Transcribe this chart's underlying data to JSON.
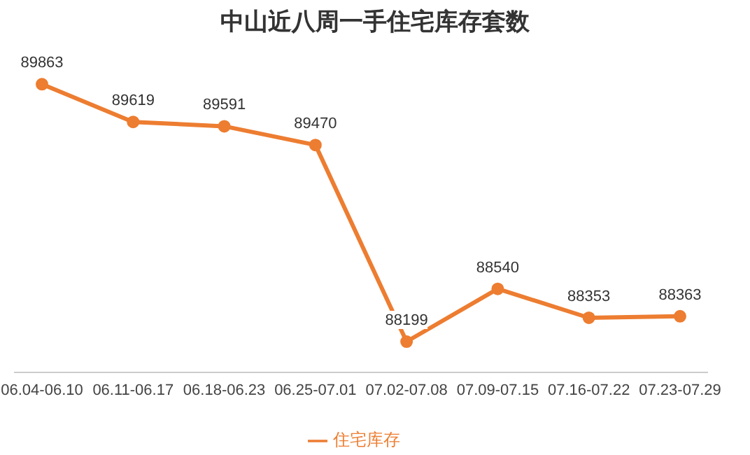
{
  "chart_data": {
    "type": "line",
    "title": "中山近八周一手住宅库存套数",
    "categories": [
      "06.04-06.10",
      "06.11-06.17",
      "06.18-06.23",
      "06.25-07.01",
      "07.02-07.08",
      "07.09-07.15",
      "07.16-07.22",
      "07.23-07.29"
    ],
    "series": [
      {
        "name": "住宅库存",
        "color": "#ed7d31",
        "values": [
          89863,
          89619,
          89591,
          89470,
          88199,
          88540,
          88353,
          88363
        ]
      }
    ],
    "tick_labels": "x",
    "data_labels": true,
    "marker": "circle",
    "legend": "bottom",
    "grid": false
  }
}
